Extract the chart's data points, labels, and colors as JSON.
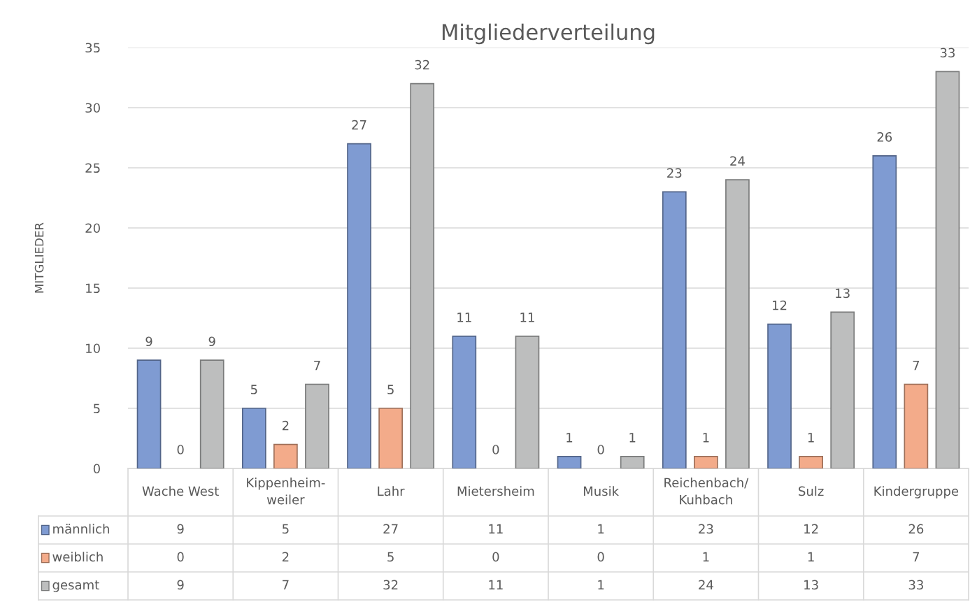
{
  "chart_data": {
    "type": "bar",
    "title": "Mitgliederverteilung",
    "ylabel": "MITGLIEDER",
    "categories": [
      "Wache West",
      "Kippenheim-\nweiler",
      "Lahr",
      "Mietersheim",
      "Musik",
      "Reichenbach/\nKuhbach",
      "Sulz",
      "Kindergruppe"
    ],
    "series": [
      {
        "name": "männlich",
        "color": "#7f9bd2",
        "values": [
          9,
          5,
          27,
          11,
          1,
          23,
          12,
          26
        ],
        "value_labels": [
          "9",
          "5",
          "27",
          "11",
          "1",
          "23",
          "12",
          "26"
        ]
      },
      {
        "name": "weiblich",
        "color": "#f3ab8a",
        "values": [
          0,
          2,
          5,
          0,
          0,
          1,
          1,
          7
        ],
        "value_labels": [
          "0",
          "2",
          "5",
          "0",
          "0",
          "1",
          "1",
          "7"
        ]
      },
      {
        "name": "gesamt",
        "color": "#bdbebe",
        "values": [
          9,
          7,
          32,
          11,
          1,
          24,
          13,
          33
        ],
        "value_labels": [
          "9",
          "7",
          "32",
          "11",
          "1",
          "24",
          "13",
          "33"
        ]
      }
    ],
    "ylim": [
      0,
      35
    ],
    "yticks": [
      0,
      5,
      10,
      15,
      20,
      25,
      30,
      35
    ],
    "grid": "y",
    "legend": "bottom",
    "annotations": [
      "9",
      "5",
      "27",
      "11",
      "1",
      "23",
      "12",
      "26",
      "0",
      "2",
      "5",
      "0",
      "0",
      "1",
      "1",
      "7",
      "9",
      "7",
      "32",
      "11",
      "1",
      "24",
      "13",
      "33"
    ]
  }
}
